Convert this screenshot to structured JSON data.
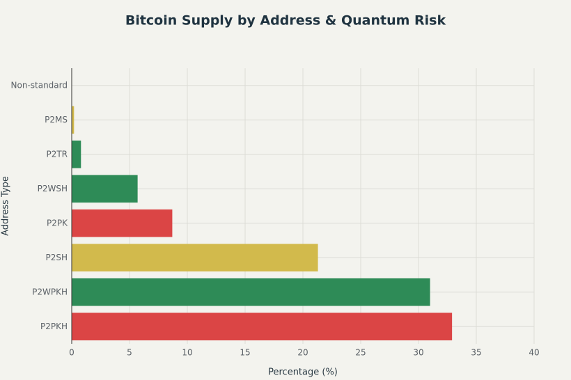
{
  "chart_data": {
    "type": "hbar",
    "title": "Bitcoin Supply by Address & Quantum Risk",
    "x_label": "Percentage (%)",
    "y_label": "Address Type",
    "categories": [
      "P2PKH",
      "P2WPKH",
      "P2SH",
      "P2PK",
      "P2WSH",
      "P2TR",
      "P2MS",
      "Non-standard"
    ],
    "values": [
      32.9,
      31.0,
      21.3,
      8.7,
      5.7,
      0.8,
      0.2,
      0
    ],
    "colors": [
      "#db4545",
      "#2e8b57",
      "#d2ba4c",
      "#db4545",
      "#2e8b57",
      "#2e8b57",
      "#d2ba4c",
      "#2e8b57"
    ],
    "xlim": [
      0,
      40
    ],
    "xticks": [
      0,
      5,
      10,
      15,
      20,
      25,
      30,
      35,
      40
    ],
    "grid": true
  }
}
